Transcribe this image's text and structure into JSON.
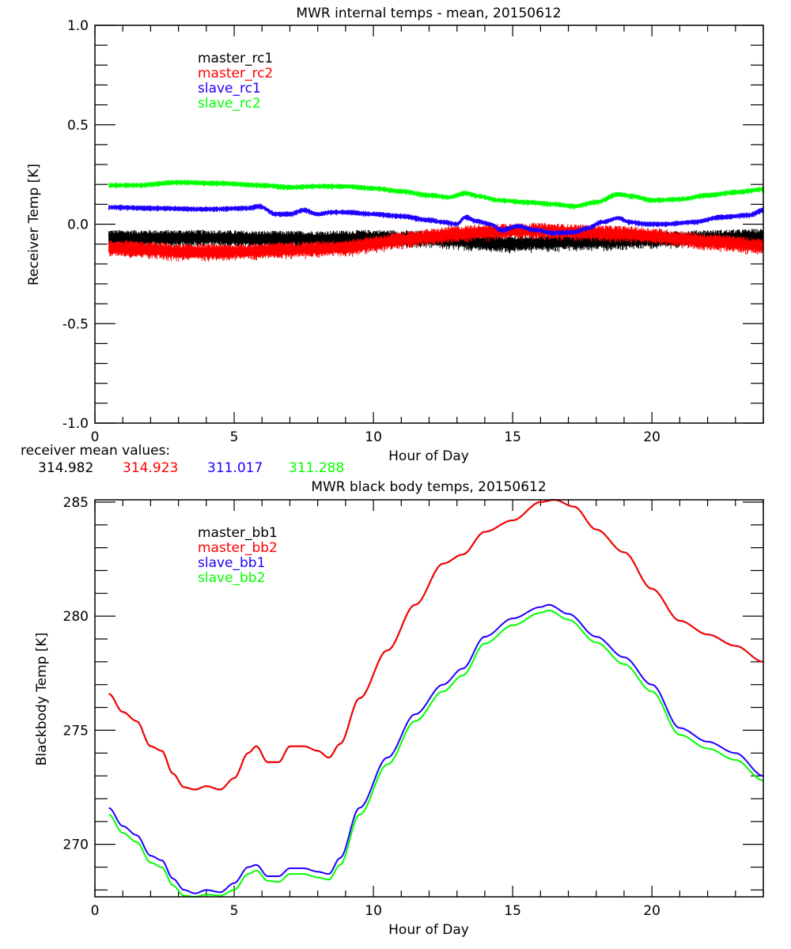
{
  "chart_data": [
    {
      "type": "line",
      "title": "MWR internal temps - mean, 20150612",
      "xlabel": "Hour of Day",
      "ylabel": "Receiver Temp [K]",
      "xlim": [
        0,
        24
      ],
      "ylim": [
        -1.0,
        1.0
      ],
      "xticks": [
        "0",
        "5",
        "10",
        "15",
        "20"
      ],
      "yticks": [
        "1.0",
        "0.5",
        "0.0",
        "-0.5",
        "-1.0"
      ],
      "ytick_values": [
        1.0,
        0.5,
        0.0,
        -0.5,
        -1.0
      ],
      "xtick_values": [
        0,
        5,
        10,
        15,
        20
      ],
      "grid": false,
      "legend_position": "top-left",
      "noise_band": true,
      "series": [
        {
          "name": "master_rc1",
          "color": "#000000",
          "band": 0.035,
          "x": [
            0.5,
            2,
            4,
            6,
            8,
            10,
            12,
            13,
            14,
            15,
            16,
            17,
            18,
            19,
            20,
            22,
            24
          ],
          "y": [
            -0.07,
            -0.07,
            -0.07,
            -0.075,
            -0.075,
            -0.07,
            -0.075,
            -0.085,
            -0.095,
            -0.1,
            -0.095,
            -0.09,
            -0.09,
            -0.085,
            -0.08,
            -0.07,
            -0.065
          ]
        },
        {
          "name": "master_rc2",
          "color": "#ff0000",
          "band": 0.035,
          "x": [
            0.5,
            2,
            3,
            5,
            7,
            9,
            10,
            11,
            12,
            13,
            14,
            15,
            16,
            17,
            18,
            19,
            20,
            21,
            22,
            24
          ],
          "y": [
            -0.12,
            -0.13,
            -0.14,
            -0.14,
            -0.13,
            -0.12,
            -0.1,
            -0.08,
            -0.065,
            -0.05,
            -0.04,
            -0.035,
            -0.035,
            -0.04,
            -0.045,
            -0.05,
            -0.06,
            -0.075,
            -0.09,
            -0.11
          ]
        },
        {
          "name": "slave_rc1",
          "color": "#1f00ff",
          "band": 0.012,
          "x": [
            0.5,
            2,
            4,
            5.5,
            5.9,
            6.5,
            7,
            7.5,
            8,
            8.5,
            9,
            10,
            11,
            12,
            12.5,
            13,
            13.3,
            13.7,
            14.2,
            14.6,
            15.2,
            15.8,
            16.5,
            17.2,
            17.7,
            18.2,
            18.8,
            19.2,
            19.8,
            20.5,
            21.5,
            22.5,
            23.5,
            24
          ],
          "y": [
            0.085,
            0.08,
            0.075,
            0.08,
            0.09,
            0.05,
            0.05,
            0.07,
            0.05,
            0.06,
            0.06,
            0.05,
            0.04,
            0.02,
            0.01,
            0.0,
            0.035,
            0.015,
            0.0,
            -0.03,
            -0.01,
            -0.03,
            -0.045,
            -0.04,
            -0.02,
            0.01,
            0.03,
            0.01,
            0.0,
            0.0,
            0.01,
            0.035,
            0.045,
            0.07
          ]
        },
        {
          "name": "slave_rc2",
          "color": "#00ff00",
          "band": 0.012,
          "x": [
            0.5,
            1.5,
            3,
            4.5,
            6,
            7,
            8,
            9,
            10,
            11,
            12,
            12.7,
            13.3,
            13.8,
            14.5,
            15.5,
            16.5,
            17.2,
            18,
            18.8,
            19.3,
            20,
            21,
            22,
            23,
            24
          ],
          "y": [
            0.195,
            0.195,
            0.21,
            0.205,
            0.195,
            0.185,
            0.19,
            0.19,
            0.18,
            0.165,
            0.145,
            0.135,
            0.155,
            0.14,
            0.12,
            0.11,
            0.1,
            0.09,
            0.11,
            0.15,
            0.14,
            0.12,
            0.125,
            0.145,
            0.16,
            0.175
          ]
        }
      ],
      "annotation": {
        "label": "receiver mean values:",
        "values": [
          {
            "text": "314.982",
            "color": "#000000"
          },
          {
            "text": "314.923",
            "color": "#ff0000"
          },
          {
            "text": "311.017",
            "color": "#1f00ff"
          },
          {
            "text": "311.288",
            "color": "#00ff00"
          }
        ]
      }
    },
    {
      "type": "line",
      "title": "MWR black body temps, 20150612",
      "xlabel": "Hour of Day",
      "ylabel": "Blackbody Temp [K]",
      "xlim": [
        0,
        24
      ],
      "ylim": [
        267.7,
        285.1
      ],
      "xticks": [
        "0",
        "5",
        "10",
        "15",
        "20"
      ],
      "xtick_values": [
        0,
        5,
        10,
        15,
        20
      ],
      "yticks": [
        "285",
        "280",
        "275",
        "270"
      ],
      "ytick_values": [
        285,
        280,
        275,
        270
      ],
      "grid": false,
      "legend_position": "top-left",
      "series": [
        {
          "name": "master_bb1",
          "color": "#000000",
          "x": [
            0.5,
            1.0,
            1.5,
            2.0,
            2.4,
            2.8,
            3.2,
            3.6,
            4.0,
            4.5,
            5.0,
            5.5,
            5.8,
            6.2,
            6.6,
            7.0,
            7.5,
            8.0,
            8.4,
            8.8,
            9.5,
            10.5,
            11.5,
            12.5,
            13.2,
            14.0,
            15.0,
            16.0,
            16.5,
            17.2,
            18.0,
            19.0,
            20.0,
            21.0,
            22.0,
            23.0,
            24.0
          ],
          "y": [
            276.6,
            275.8,
            275.4,
            274.3,
            274.1,
            273.1,
            272.5,
            272.4,
            272.55,
            272.4,
            272.9,
            274.0,
            274.3,
            273.6,
            273.6,
            274.3,
            274.3,
            274.1,
            273.8,
            274.4,
            276.4,
            278.5,
            280.5,
            282.3,
            282.7,
            283.7,
            284.2,
            285.0,
            285.1,
            284.8,
            283.8,
            282.8,
            281.2,
            279.8,
            279.2,
            278.7,
            278.0
          ]
        },
        {
          "name": "master_bb2",
          "color": "#ff0000",
          "x": [
            0.5,
            1.0,
            1.5,
            2.0,
            2.4,
            2.8,
            3.2,
            3.6,
            4.0,
            4.5,
            5.0,
            5.5,
            5.8,
            6.2,
            6.6,
            7.0,
            7.5,
            8.0,
            8.4,
            8.8,
            9.5,
            10.5,
            11.5,
            12.5,
            13.2,
            14.0,
            15.0,
            16.0,
            16.5,
            17.2,
            18.0,
            19.0,
            20.0,
            21.0,
            22.0,
            23.0,
            24.0
          ],
          "y": [
            276.6,
            275.8,
            275.4,
            274.3,
            274.1,
            273.1,
            272.5,
            272.4,
            272.55,
            272.4,
            272.9,
            274.0,
            274.3,
            273.6,
            273.6,
            274.3,
            274.3,
            274.1,
            273.8,
            274.4,
            276.4,
            278.5,
            280.5,
            282.3,
            282.7,
            283.7,
            284.2,
            285.0,
            285.1,
            284.8,
            283.8,
            282.8,
            281.2,
            279.8,
            279.2,
            278.7,
            278.0
          ]
        },
        {
          "name": "slave_bb1",
          "color": "#1f00ff",
          "x": [
            0.5,
            1.0,
            1.5,
            2.0,
            2.4,
            2.8,
            3.2,
            3.6,
            4.0,
            4.5,
            5.0,
            5.5,
            5.8,
            6.2,
            6.6,
            7.0,
            7.5,
            8.0,
            8.4,
            8.8,
            9.5,
            10.5,
            11.5,
            12.5,
            13.2,
            14.0,
            15.0,
            16.0,
            16.3,
            17.0,
            18.0,
            19.0,
            20.0,
            21.0,
            22.0,
            23.0,
            24.0
          ],
          "y": [
            271.6,
            270.8,
            270.4,
            269.5,
            269.3,
            268.5,
            268.0,
            267.85,
            268.0,
            267.9,
            268.3,
            269.0,
            269.1,
            268.6,
            268.6,
            268.95,
            268.95,
            268.8,
            268.7,
            269.4,
            271.6,
            273.8,
            275.7,
            277.0,
            277.7,
            279.1,
            279.9,
            280.4,
            280.5,
            280.1,
            279.1,
            278.2,
            277.0,
            275.1,
            274.5,
            274.0,
            273.0
          ]
        },
        {
          "name": "slave_bb2",
          "color": "#00ff00",
          "x": [
            0.5,
            1.0,
            1.5,
            2.0,
            2.4,
            2.8,
            3.2,
            3.6,
            4.0,
            4.5,
            5.0,
            5.5,
            5.8,
            6.2,
            6.6,
            7.0,
            7.5,
            8.0,
            8.4,
            8.8,
            9.5,
            10.5,
            11.5,
            12.5,
            13.2,
            14.0,
            15.0,
            16.0,
            16.3,
            17.0,
            18.0,
            19.0,
            20.0,
            21.0,
            22.0,
            23.0,
            24.0
          ],
          "y": [
            271.3,
            270.5,
            270.1,
            269.2,
            269.0,
            268.2,
            267.75,
            267.7,
            267.8,
            267.75,
            268.0,
            268.7,
            268.85,
            268.4,
            268.35,
            268.7,
            268.7,
            268.55,
            268.45,
            269.1,
            271.3,
            273.5,
            275.4,
            276.7,
            277.4,
            278.8,
            279.6,
            280.15,
            280.25,
            279.85,
            278.85,
            277.9,
            276.7,
            274.8,
            274.2,
            273.7,
            272.8
          ]
        }
      ]
    }
  ]
}
